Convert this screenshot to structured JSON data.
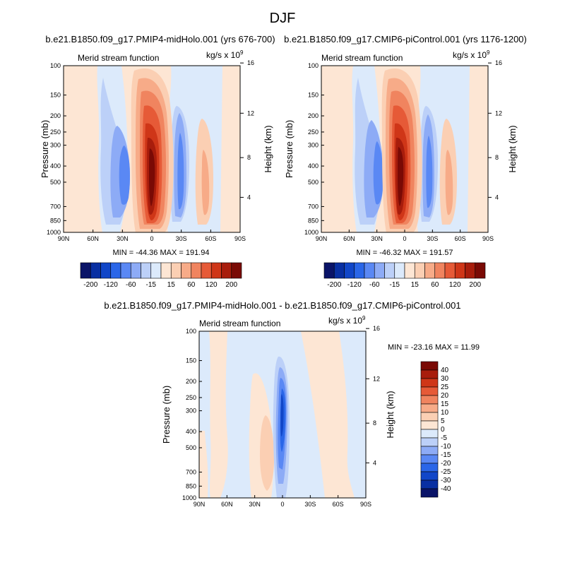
{
  "figure": {
    "title": "DJF"
  },
  "colors": {
    "panel12": [
      "#0a1468",
      "#082fa2",
      "#1146c8",
      "#2a66e8",
      "#5a88f4",
      "#8dabf6",
      "#bcd0f8",
      "#dceafb",
      "#fde6d4",
      "#fbcfb3",
      "#f7ab88",
      "#f0845f",
      "#e65a37",
      "#cf3618",
      "#a81d0c",
      "#7a0a05"
    ],
    "diff": [
      "#0a1468",
      "#082fa2",
      "#1146c8",
      "#2a66e8",
      "#5a88f4",
      "#8dabf6",
      "#bcd0f8",
      "#dceafb",
      "#fde6d4",
      "#fbcfb3",
      "#f7ab88",
      "#f0845f",
      "#e65a37",
      "#cf3618",
      "#a81d0c",
      "#7a0a05"
    ]
  },
  "chart_data": [
    {
      "type": "contour",
      "panel": "top-left",
      "title": "b.e21.B1850.f09_g17.PMIP4-midHolo.001 (yrs 676-700)",
      "left_label": "Merid stream function",
      "right_label_prefix": "kg/s x 10",
      "right_label_exp": "9",
      "ylabel": "Pressure (mb)",
      "ylabel_right": "Height (km)",
      "x_ticks": [
        "90N",
        "60N",
        "30N",
        "0",
        "30S",
        "60S",
        "90S"
      ],
      "x_values": [
        90,
        60,
        30,
        0,
        -30,
        -60,
        -90
      ],
      "y_ticks": [
        100,
        150,
        200,
        250,
        300,
        400,
        500,
        700,
        850,
        1000
      ],
      "height_ticks": [
        16,
        12,
        8,
        4
      ],
      "ylim": [
        1000,
        100
      ],
      "stats": "MIN = -44.36   MAX = 191.94",
      "min": -44.36,
      "max": 191.94,
      "levels": [
        -200,
        -160,
        -120,
        -80,
        -60,
        -40,
        -15,
        -5,
        5,
        15,
        40,
        60,
        80,
        120,
        160,
        200
      ],
      "colorbar_labels": [
        "-200",
        "-120",
        "-60",
        "-15",
        "15",
        "60",
        "120",
        "200"
      ],
      "features": [
        {
          "name": "hadley-positive-cell",
          "lat": -8,
          "value": 191.94
        },
        {
          "name": "ferrel-negative-nh",
          "lat": 36,
          "value": -44.36
        },
        {
          "name": "sh-negative-cell",
          "lat": -20,
          "value": -40
        },
        {
          "name": "sh-positive-cell",
          "lat": -47,
          "value": 20
        }
      ]
    },
    {
      "type": "contour",
      "panel": "top-right",
      "title": "b.e21.B1850.f09_g17.CMIP6-piControl.001 (yrs 1176-1200)",
      "left_label": "Merid stream function",
      "right_label_prefix": "kg/s x 10",
      "right_label_exp": "9",
      "ylabel": "Pressure (mb)",
      "ylabel_right": "Height (km)",
      "x_ticks": [
        "90N",
        "60N",
        "30N",
        "0",
        "30S",
        "60S",
        "90S"
      ],
      "x_values": [
        90,
        60,
        30,
        0,
        -30,
        -60,
        -90
      ],
      "y_ticks": [
        100,
        150,
        200,
        250,
        300,
        400,
        500,
        700,
        850,
        1000
      ],
      "height_ticks": [
        16,
        12,
        8,
        4
      ],
      "ylim": [
        1000,
        100
      ],
      "stats": "MIN = -46.32   MAX = 191.57",
      "min": -46.32,
      "max": 191.57,
      "levels": [
        -200,
        -160,
        -120,
        -80,
        -60,
        -40,
        -15,
        -5,
        5,
        15,
        40,
        60,
        80,
        120,
        160,
        200
      ],
      "colorbar_labels": [
        "-200",
        "-120",
        "-60",
        "-15",
        "15",
        "60",
        "120",
        "200"
      ],
      "features": [
        {
          "name": "hadley-positive-cell",
          "lat": -8,
          "value": 191.57
        },
        {
          "name": "ferrel-negative-nh",
          "lat": 36,
          "value": -46.32
        },
        {
          "name": "sh-negative-cell",
          "lat": -20,
          "value": -40
        },
        {
          "name": "sh-positive-cell",
          "lat": -47,
          "value": 20
        }
      ]
    },
    {
      "type": "contour",
      "panel": "bottom",
      "title": "b.e21.B1850.f09_g17.PMIP4-midHolo.001 - b.e21.B1850.f09_g17.CMIP6-piControl.001",
      "left_label": "Merid stream function",
      "right_label_prefix": "kg/s x 10",
      "right_label_exp": "9",
      "ylabel": "Pressure (mb)",
      "ylabel_right": "Height (km)",
      "x_ticks": [
        "90N",
        "60N",
        "30N",
        "0",
        "30S",
        "60S",
        "90S"
      ],
      "x_values": [
        90,
        60,
        30,
        0,
        -30,
        -60,
        -90
      ],
      "y_ticks": [
        100,
        150,
        200,
        250,
        300,
        400,
        500,
        700,
        850,
        1000
      ],
      "height_ticks": [
        16,
        12,
        8,
        4
      ],
      "ylim": [
        1000,
        100
      ],
      "stats": "MIN = -23.16   MAX = 11.99",
      "min": -23.16,
      "max": 11.99,
      "levels": [
        -40,
        -30,
        -25,
        -20,
        -15,
        -10,
        -5,
        0,
        5,
        10,
        15,
        20,
        25,
        30,
        40
      ],
      "colorbar_labels": [
        "40",
        "30",
        "25",
        "20",
        "15",
        "10",
        "5",
        "0",
        "-5",
        "-10",
        "-15",
        "-20",
        "-25",
        "-30",
        "-40"
      ],
      "features": [
        {
          "name": "equatorial-negative-core",
          "lat": 2,
          "value": -23.16
        },
        {
          "name": "nh-positive-cell",
          "lat": 22,
          "value": 11.99
        }
      ]
    }
  ]
}
